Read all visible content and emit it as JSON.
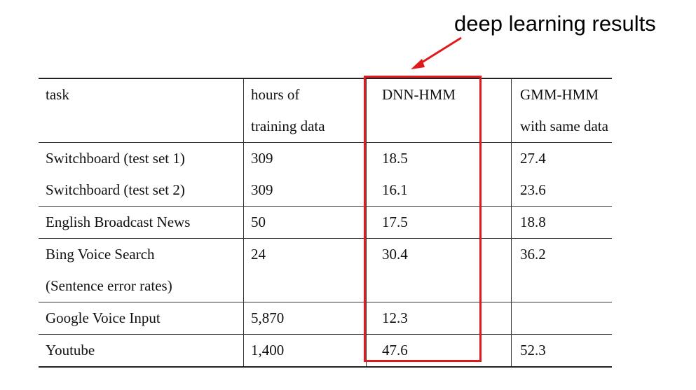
{
  "annotation": "deep learning results",
  "table": {
    "header": [
      [
        "task",
        "hours of",
        "DNN-HMM",
        "GMM-HMM"
      ],
      [
        "",
        "training data",
        "",
        "with same data"
      ]
    ],
    "rows": [
      [
        "Switchboard (test set 1)",
        "309",
        "18.5",
        "27.4"
      ],
      [
        "Switchboard (test set 2)",
        "309",
        "16.1",
        "23.6"
      ],
      [
        "English Broadcast News",
        "50",
        "17.5",
        "18.8"
      ],
      [
        "Bing Voice Search",
        "24",
        "30.4",
        "36.2"
      ],
      [
        "(Sentence error rates)",
        "",
        "",
        ""
      ],
      [
        "Google Voice Input",
        "5,870",
        "12.3",
        ""
      ],
      [
        "Youtube",
        "1,400",
        "47.6",
        "52.3"
      ]
    ]
  },
  "colors": {
    "highlight": "#e01a1a",
    "text": "#111111"
  }
}
